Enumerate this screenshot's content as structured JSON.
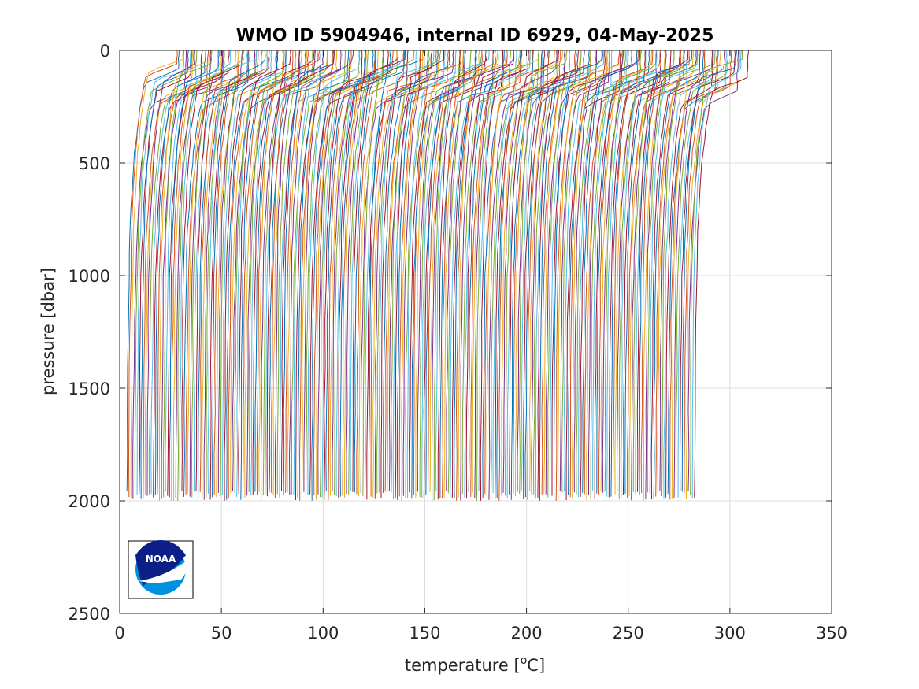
{
  "chart_data": {
    "type": "line",
    "title": "WMO ID 5904946, internal ID 6929, 04-May-2025",
    "xlabel_prefix": "temperature [",
    "xlabel_sup": "o",
    "xlabel_suffix": "C]",
    "ylabel": "pressure [dbar]",
    "xlim": [
      0,
      350
    ],
    "ylim": [
      0,
      2500
    ],
    "y_reversed": true,
    "grid": true,
    "xticks": [
      "0",
      "50",
      "100",
      "150",
      "200",
      "250",
      "300",
      "350"
    ],
    "yticks": [
      "0",
      "500",
      "1000",
      "1500",
      "2000",
      "2500"
    ],
    "n_profiles": 280,
    "profile_offset_step": 1.0,
    "profile_deep_temperature_first": 3.5,
    "profile_surface_temperature_range": [
      28,
      314
    ],
    "profile_max_pressure": 2000,
    "series_colors": [
      "#0072BD",
      "#D95319",
      "#EDB120",
      "#7E2F8E",
      "#77AC30",
      "#4DBEEE",
      "#A2142F"
    ],
    "logo_text": "NOAA"
  }
}
